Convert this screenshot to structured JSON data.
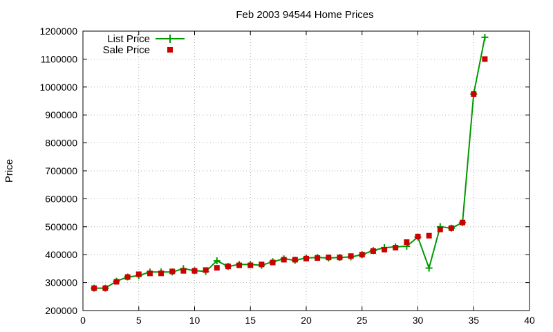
{
  "chart_data": {
    "type": "line",
    "title": "Feb 2003 94544 Home Prices",
    "xlabel": "",
    "ylabel": "Price",
    "xlim": [
      0,
      40
    ],
    "ylim": [
      200000,
      1200000
    ],
    "x_ticks": [
      0,
      5,
      10,
      15,
      20,
      25,
      30,
      35,
      40
    ],
    "y_ticks": [
      200000,
      300000,
      400000,
      500000,
      600000,
      700000,
      800000,
      900000,
      1000000,
      1100000,
      1200000
    ],
    "grid": true,
    "legend_position": "top-left",
    "series": [
      {
        "name": "List Price",
        "style": "line-points",
        "marker": "plus",
        "color": "#009900",
        "x": [
          1,
          2,
          3,
          4,
          5,
          6,
          7,
          8,
          9,
          10,
          11,
          12,
          13,
          14,
          15,
          16,
          17,
          18,
          19,
          20,
          21,
          22,
          23,
          24,
          25,
          26,
          27,
          28,
          29,
          30,
          31,
          32,
          33,
          34,
          35,
          36
        ],
        "values": [
          280000,
          280000,
          305000,
          320000,
          325000,
          338000,
          338000,
          338000,
          350000,
          343000,
          340000,
          378000,
          358000,
          365000,
          365000,
          362000,
          375000,
          385000,
          380000,
          388000,
          390000,
          388000,
          390000,
          392000,
          400000,
          415000,
          425000,
          428000,
          430000,
          463000,
          352000,
          500000,
          495000,
          515000,
          975000,
          1178000
        ]
      },
      {
        "name": "Sale Price",
        "style": "points",
        "marker": "square",
        "color": "#cc0000",
        "x": [
          1,
          2,
          3,
          4,
          5,
          6,
          7,
          8,
          9,
          10,
          11,
          12,
          13,
          14,
          15,
          16,
          17,
          18,
          19,
          20,
          21,
          22,
          23,
          24,
          25,
          26,
          27,
          28,
          29,
          30,
          31,
          32,
          33,
          34,
          35,
          36
        ],
        "values": [
          280000,
          280000,
          303000,
          320000,
          330000,
          333000,
          333000,
          340000,
          342000,
          342000,
          345000,
          353000,
          358000,
          362000,
          362000,
          365000,
          372000,
          382000,
          382000,
          386000,
          388000,
          390000,
          390000,
          395000,
          400000,
          413000,
          418000,
          425000,
          445000,
          465000,
          468000,
          490000,
          495000,
          515000,
          975000,
          1100000
        ]
      }
    ]
  }
}
